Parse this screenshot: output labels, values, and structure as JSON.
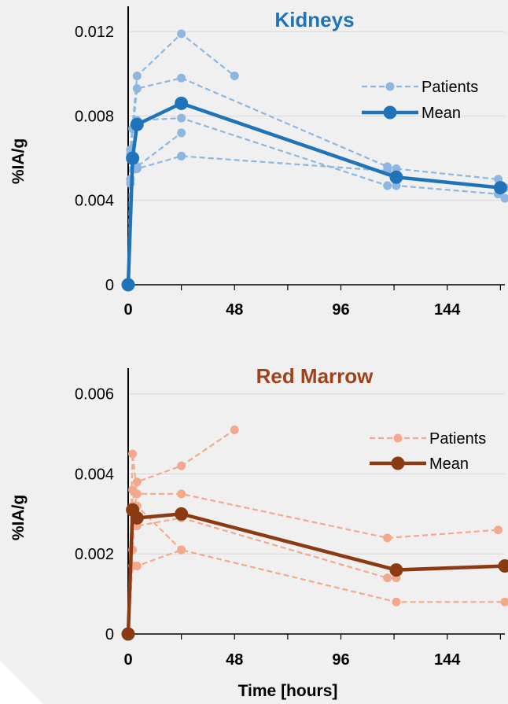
{
  "chart_data": [
    {
      "type": "line",
      "title": "Kidneys",
      "title_color": "#1f74b9",
      "ylabel": "%IA/g",
      "xlabel": "",
      "xlim": [
        0,
        170
      ],
      "ylim": [
        0,
        0.0135
      ],
      "xticks": [
        0,
        48,
        96,
        144
      ],
      "yticks": [
        0,
        0.004,
        0.008,
        0.012
      ],
      "ytick_labels": [
        "0",
        "0.004",
        "0.008",
        "0.012"
      ],
      "grid": "horizontal",
      "legend_position": "right",
      "legend": [
        "Patients",
        "Mean"
      ],
      "colors": {
        "patients": "#8db7e0",
        "mean": "#1f74b9"
      },
      "patients": [
        {
          "x": [
            0,
            1,
            4,
            24,
            48
          ],
          "y": [
            0,
            0.0064,
            0.0099,
            0.0119,
            0.0099
          ]
        },
        {
          "x": [
            0,
            1,
            4,
            24,
            117,
            121,
            167,
            170
          ],
          "y": [
            0,
            0.0062,
            0.0093,
            0.0098,
            0.0056,
            0.0055,
            0.005,
            0.0046
          ]
        },
        {
          "x": [
            0,
            2,
            4,
            24,
            117,
            121,
            167,
            170
          ],
          "y": [
            0,
            0.0074,
            0.0078,
            0.0079,
            0.0047,
            0.0047,
            0.0043,
            0.0041
          ]
        },
        {
          "x": [
            0,
            1,
            4,
            24
          ],
          "y": [
            0,
            0.005,
            0.0056,
            0.0072
          ]
        },
        {
          "x": [
            0,
            1,
            4,
            24,
            117,
            121
          ],
          "y": [
            0,
            0.0048,
            0.0055,
            0.0061,
            0.0054,
            0.0051
          ]
        }
      ],
      "mean": {
        "name": "Mean",
        "x": [
          0,
          2,
          4,
          24,
          121,
          168
        ],
        "y": [
          0,
          0.006,
          0.0076,
          0.0086,
          0.0051,
          0.0046
        ]
      }
    },
    {
      "type": "line",
      "title": "Red Marrow",
      "title_color": "#a0411c",
      "ylabel": "%IA/g",
      "xlabel": "Time [hours]",
      "xlim": [
        0,
        170
      ],
      "ylim": [
        0,
        0.0068
      ],
      "xticks": [
        0,
        48,
        96,
        144
      ],
      "yticks": [
        0,
        0.002,
        0.004,
        0.006
      ],
      "ytick_labels": [
        "0",
        "0.002",
        "0.004",
        "0.006"
      ],
      "grid": "horizontal",
      "legend_position": "right",
      "legend": [
        "Patients",
        "Mean"
      ],
      "colors": {
        "patients": "#f5a98c",
        "mean": "#8b3a12"
      },
      "patients": [
        {
          "x": [
            0,
            2,
            4,
            24,
            48
          ],
          "y": [
            0,
            0.0021,
            0.0038,
            0.0042,
            0.0051
          ]
        },
        {
          "x": [
            0,
            2,
            4,
            24,
            117,
            167
          ],
          "y": [
            0,
            0.0045,
            0.0035,
            0.0035,
            0.0024,
            0.0026
          ]
        },
        {
          "x": [
            0,
            2,
            4,
            24,
            117,
            121
          ],
          "y": [
            0,
            0.0036,
            0.0027,
            0.0029,
            0.0014,
            0.0014
          ]
        },
        {
          "x": [
            0,
            2,
            4,
            24,
            121,
            170
          ],
          "y": [
            0,
            0.0017,
            0.0017,
            0.0021,
            0.0008,
            0.0008
          ]
        },
        {
          "x": [
            0,
            2,
            4,
            24
          ],
          "y": [
            0,
            0.0032,
            0.0032,
            0.0021
          ]
        }
      ],
      "mean": {
        "name": "Mean",
        "x": [
          0,
          2,
          4,
          24,
          121,
          170
        ],
        "y": [
          0,
          0.0031,
          0.0029,
          0.003,
          0.0016,
          0.0017
        ]
      }
    }
  ]
}
